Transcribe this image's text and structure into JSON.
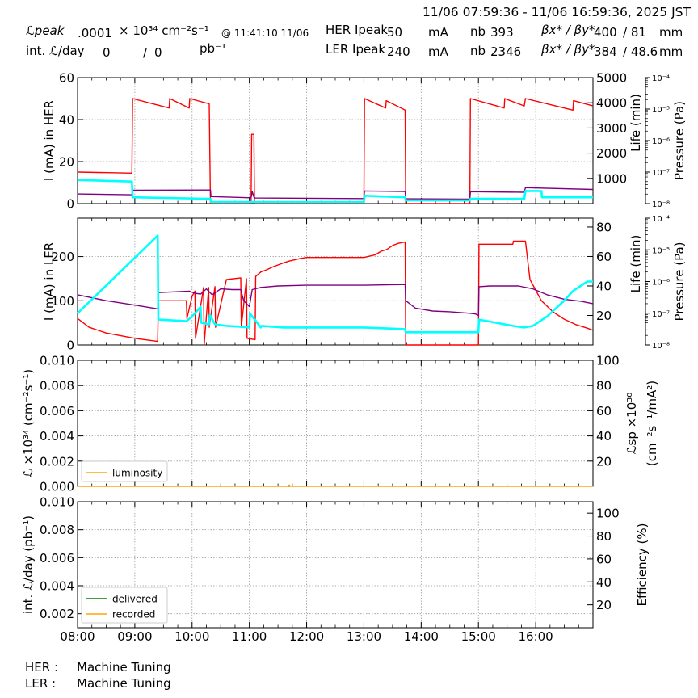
{
  "header": {
    "time_range": "11/06 07:59:36 - 11/06 16:59:36, 2025 JST",
    "lpeak_label": "ℒpeak",
    "lpeak_value": ".0001",
    "lpeak_unit": "× 10³⁴ cm⁻²s⁻¹",
    "lpeak_time": "@ 11:41:10 11/06",
    "intl_label": "int. ℒ/day",
    "intl_delivered": "0",
    "intl_sep": "/",
    "intl_recorded": "0",
    "intl_unit": "pb⁻¹",
    "her_label": "HER Ipeak",
    "her_ipeak": "50",
    "her_unit": "mA",
    "her_nb_label": "nb",
    "her_nb": "393",
    "her_beta_label": "βx* / βy*",
    "her_beta_x": "400",
    "her_beta_y": "/ 81",
    "her_beta_unit": "mm",
    "ler_label": "LER Ipeak",
    "ler_ipeak": "240",
    "ler_unit": "mA",
    "ler_nb_label": "nb",
    "ler_nb": "2346",
    "ler_beta_label": "βx* / βy*",
    "ler_beta_x": "384",
    "ler_beta_y": "/ 48.6",
    "ler_beta_unit": "mm"
  },
  "footer": {
    "her_label": "HER :",
    "her_status": "Machine Tuning",
    "ler_label": "LER :",
    "ler_status": "Machine Tuning"
  },
  "colors": {
    "current": "#ff0000",
    "life": "#800080",
    "pressure": "#00ffff",
    "luminosity": "#ffa500",
    "delivered": "#008000",
    "recorded": "#ffa500",
    "grid": "#999999"
  },
  "chart_data": [
    {
      "id": "her",
      "type": "line",
      "ylabel": "I (mA) in HER",
      "ylim": [
        0,
        60
      ],
      "yticks": [
        "0",
        "20",
        "40",
        "60"
      ],
      "ylabel_right": "Life (min)",
      "ylim_right": [
        0,
        5000
      ],
      "yticks_right": [
        "1000",
        "2000",
        "3000",
        "4000",
        "5000"
      ],
      "ylabel_pressure": "Pressure (Pa)",
      "ylim_pressure_log": [
        -8,
        -4
      ],
      "yticks_pressure": [
        "10⁻⁸",
        "10⁻⁷",
        "10⁻⁶",
        "10⁻⁵",
        "10⁻⁴"
      ],
      "grid": true,
      "series": [
        {
          "role": "current",
          "x": [
            8.0,
            8.95,
            8.96,
            9.6,
            9.61,
            9.95,
            9.96,
            10.3,
            10.32,
            11.03,
            11.04,
            11.08,
            11.09,
            13.0,
            13.01,
            13.38,
            13.39,
            13.72,
            13.73,
            14.85,
            14.86,
            15.45,
            15.46,
            15.8,
            15.82,
            16.65,
            16.66,
            17.0
          ],
          "y": [
            15,
            14.5,
            50,
            45.5,
            50,
            45.5,
            50,
            47.5,
            0,
            0,
            33,
            33,
            0,
            0,
            50,
            45.5,
            49,
            44.5,
            0,
            0,
            50,
            45.5,
            50,
            46.5,
            50,
            44.5,
            49,
            46.5
          ]
        },
        {
          "role": "life",
          "x": [
            8.0,
            8.95,
            8.96,
            10.32,
            10.33,
            11.03,
            11.05,
            11.08,
            11.1,
            13.0,
            13.01,
            13.72,
            13.73,
            14.85,
            14.86,
            15.8,
            15.82,
            17.0
          ],
          "y": [
            380,
            350,
            530,
            540,
            280,
            230,
            480,
            260,
            220,
            200,
            500,
            480,
            190,
            180,
            470,
            450,
            630,
            560
          ]
        },
        {
          "role": "pressure",
          "x": [
            8.0,
            8.95,
            8.96,
            10.32,
            10.33,
            13.0,
            13.01,
            13.72,
            13.73,
            14.85,
            14.86,
            15.8,
            15.82,
            16.1,
            16.11,
            17.0
          ],
          "y": [
            -7.25,
            -7.3,
            -7.8,
            -7.85,
            -7.95,
            -7.95,
            -7.75,
            -7.8,
            -7.9,
            -7.9,
            -7.85,
            -7.85,
            -7.6,
            -7.6,
            -7.8,
            -7.8
          ]
        }
      ]
    },
    {
      "id": "ler",
      "type": "line",
      "ylabel": "I (mA) in LER",
      "ylim": [
        0,
        287
      ],
      "yticks": [
        "0",
        "100",
        "200"
      ],
      "ylabel_right": "Life (min)",
      "ylim_right": [
        0,
        86
      ],
      "yticks_right": [
        "20",
        "40",
        "60",
        "80"
      ],
      "ylabel_pressure": "Pressure (Pa)",
      "ylim_pressure_log": [
        -8,
        -4
      ],
      "yticks_pressure": [
        "10⁻⁸",
        "10⁻⁷",
        "10⁻⁶",
        "10⁻⁵",
        "10⁻⁴"
      ],
      "grid": true,
      "series": [
        {
          "role": "current",
          "x": [
            8.0,
            8.2,
            8.5,
            9.0,
            9.4,
            9.41,
            9.9,
            9.91,
            10.0,
            10.05,
            10.06,
            10.2,
            10.21,
            10.29,
            10.3,
            10.4,
            10.41,
            10.6,
            10.61,
            10.85,
            10.86,
            10.95,
            10.96,
            11.1,
            11.11,
            11.2,
            11.3,
            11.4,
            11.5,
            11.6,
            11.7,
            11.8,
            11.9,
            12.0,
            12.4,
            12.41,
            13.0,
            13.2,
            13.3,
            13.4,
            13.5,
            13.6,
            13.72,
            13.73,
            14.4,
            14.41,
            15.0,
            15.01,
            15.6,
            15.61,
            15.82,
            15.9,
            16.1,
            16.3,
            16.5,
            16.7,
            16.9,
            17.0
          ],
          "y": [
            60,
            40,
            27,
            15,
            8,
            100,
            100,
            60,
            110,
            122,
            15,
            130,
            0,
            130,
            40,
            132,
            40,
            148,
            148,
            152,
            40,
            150,
            15,
            12,
            155,
            165,
            170,
            176,
            181,
            186,
            190,
            193,
            196,
            198,
            198,
            198,
            198,
            204,
            212,
            216,
            225,
            230,
            233,
            0,
            0,
            0,
            0,
            228,
            228,
            235,
            235,
            148,
            100,
            75,
            58,
            46,
            38,
            33
          ]
        },
        {
          "role": "life",
          "x": [
            8.0,
            8.5,
            9.0,
            9.4,
            9.41,
            9.95,
            10.05,
            10.15,
            10.25,
            10.35,
            10.5,
            10.7,
            10.85,
            10.9,
            11.0,
            11.05,
            11.2,
            11.5,
            12.0,
            13.0,
            13.72,
            13.73,
            13.9,
            14.2,
            14.5,
            14.85,
            14.95,
            15.0,
            15.01,
            15.2,
            15.7,
            15.95,
            16.2,
            16.5,
            16.8,
            17.0
          ],
          "y": [
            34,
            30,
            27,
            24.5,
            35.5,
            36.5,
            35,
            34.5,
            38,
            34,
            38,
            37.5,
            37.5,
            30,
            26,
            37.5,
            39,
            40,
            40.5,
            40.5,
            41,
            30,
            25,
            23,
            22.5,
            21.5,
            21,
            20,
            39.5,
            40,
            40,
            38,
            34,
            31,
            29.5,
            28
          ]
        },
        {
          "role": "pressure",
          "x": [
            8.0,
            8.4,
            8.8,
            9.2,
            9.4,
            9.41,
            9.9,
            10.0,
            10.15,
            10.16,
            10.3,
            10.31,
            10.4,
            10.6,
            10.8,
            11.0,
            11.01,
            11.2,
            11.21,
            11.6,
            12.0,
            12.5,
            13.0,
            13.72,
            13.73,
            15.0,
            15.01,
            15.6,
            15.8,
            15.95,
            16.2,
            16.5,
            16.65,
            16.9,
            17.0
          ],
          "y": [
            -7.0,
            -6.3,
            -5.6,
            -4.9,
            -4.55,
            -7.2,
            -7.25,
            -7.1,
            -6.8,
            -7.3,
            -7.35,
            -7.05,
            -7.35,
            -7.4,
            -7.42,
            -7.45,
            -7.0,
            -7.45,
            -7.4,
            -7.45,
            -7.45,
            -7.45,
            -7.45,
            -7.5,
            -7.6,
            -7.6,
            -7.2,
            -7.4,
            -7.45,
            -7.4,
            -7.1,
            -6.6,
            -6.3,
            -6.0,
            -6.0
          ]
        }
      ]
    },
    {
      "id": "luminosity",
      "type": "line",
      "ylabel": "ℒ ×10³⁴ (cm⁻²s⁻¹)",
      "ylim": [
        0,
        0.01
      ],
      "yticks": [
        "0.000",
        "0.002",
        "0.004",
        "0.006",
        "0.008",
        "0.010"
      ],
      "ylabel_right": "ℒsp ×10³⁰",
      "ylabel_right_2": "(cm⁻²s⁻¹/mA²)",
      "ylim_right": [
        0,
        100
      ],
      "yticks_right": [
        "20",
        "40",
        "60",
        "80",
        "100"
      ],
      "legend": "lower-left",
      "grid": true,
      "series": [
        {
          "name": "luminosity",
          "role": "luminosity",
          "x": [
            8.0,
            11.68,
            11.69,
            11.7,
            11.71,
            17.0
          ],
          "y": [
            0,
            0,
            0.0001,
            0.0001,
            0,
            0
          ]
        }
      ]
    },
    {
      "id": "integrated",
      "type": "line",
      "ylabel": "int. ℒ/day (pb⁻¹)",
      "ylim": [
        0.001,
        0.01
      ],
      "yticks": [
        "0.002",
        "0.004",
        "0.006",
        "0.008",
        "0.010"
      ],
      "ylabel_right": "Efficiency (%)",
      "ylim_right": [
        0,
        110
      ],
      "yticks_right": [
        "20",
        "40",
        "60",
        "80",
        "100"
      ],
      "xticks": [
        "08:00",
        "09:00",
        "10:00",
        "11:00",
        "12:00",
        "13:00",
        "14:00",
        "15:00",
        "16:00"
      ],
      "xlim": [
        8.0,
        17.0
      ],
      "legend": "lower-left",
      "grid": true,
      "series": [
        {
          "name": "delivered",
          "role": "delivered",
          "x": [],
          "y": []
        },
        {
          "name": "recorded",
          "role": "recorded",
          "x": [],
          "y": []
        }
      ]
    }
  ]
}
